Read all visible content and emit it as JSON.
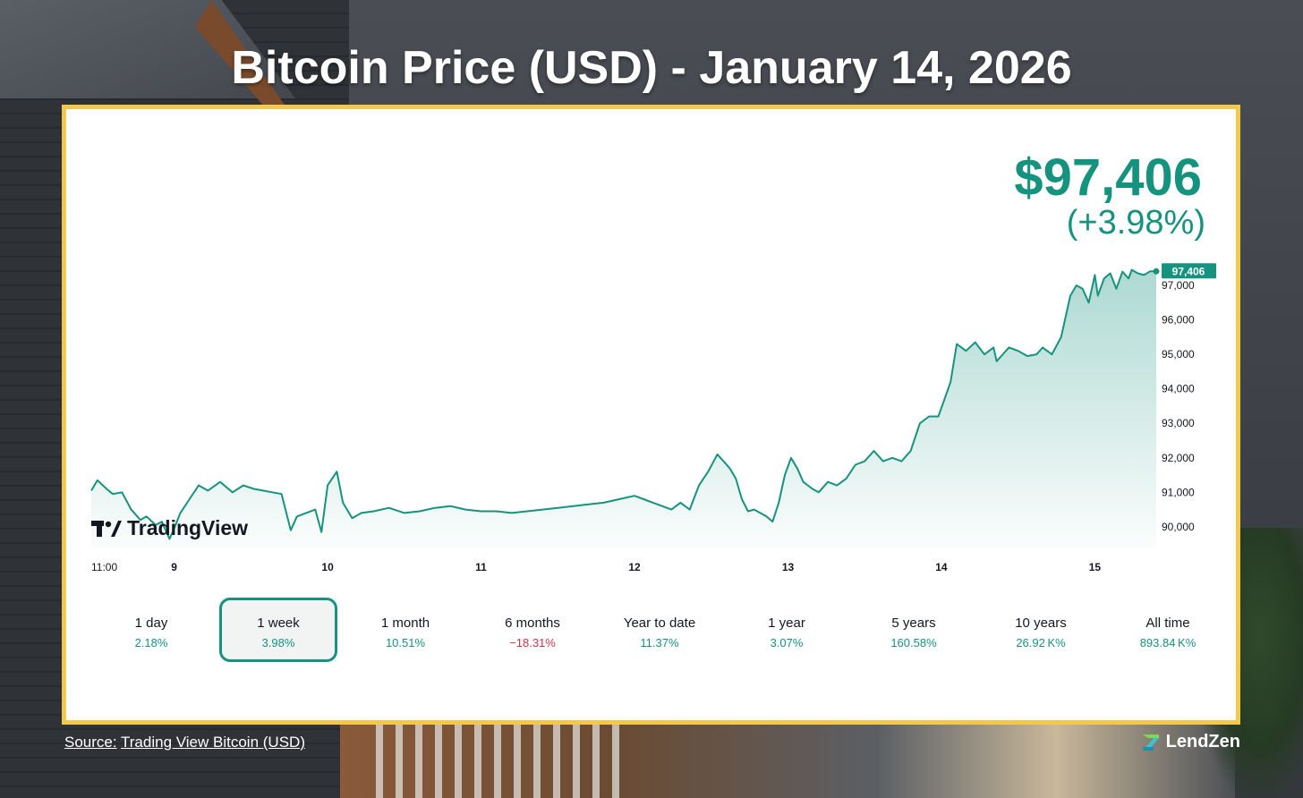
{
  "title": "Bitcoin Price (USD) - January 14, 2026",
  "colors": {
    "accent": "#16937f",
    "negative": "#d2334b",
    "frame": "#f2c94c"
  },
  "price": {
    "value": "$97,406",
    "change": "(+3.98%)",
    "last_label": "97,406"
  },
  "logo": {
    "icon": "tradingview-logo-icon",
    "text": "TradingView"
  },
  "ranges": [
    {
      "label": "1 day",
      "pct": "2.18%",
      "negative": false,
      "selected": false
    },
    {
      "label": "1 week",
      "pct": "3.98%",
      "negative": false,
      "selected": true
    },
    {
      "label": "1 month",
      "pct": "10.51%",
      "negative": false,
      "selected": false
    },
    {
      "label": "6 months",
      "pct": "−18.31%",
      "negative": true,
      "selected": false
    },
    {
      "label": "Year to date",
      "pct": "11.37%",
      "negative": false,
      "selected": false
    },
    {
      "label": "1 year",
      "pct": "3.07%",
      "negative": false,
      "selected": false
    },
    {
      "label": "5 years",
      "pct": "160.58%",
      "negative": false,
      "selected": false
    },
    {
      "label": "10 years",
      "pct": "26.92 K%",
      "negative": false,
      "selected": false
    },
    {
      "label": "All time",
      "pct": "893.84 K%",
      "negative": false,
      "selected": false
    }
  ],
  "footer": {
    "source_prefix": "Source:",
    "source_link": "Trading View Bitcoin (USD)",
    "brand": "LendZen"
  },
  "chart_data": {
    "type": "area",
    "title": "",
    "xlabel": "",
    "ylabel": "",
    "x_tick_labels": [
      "11:00",
      "9",
      "10",
      "11",
      "12",
      "13",
      "14",
      "15"
    ],
    "x_ticks": [
      8.46,
      9,
      10,
      11,
      12,
      13,
      14,
      15
    ],
    "xlim": [
      8.46,
      15.4
    ],
    "y_ticks": [
      90000,
      91000,
      92000,
      93000,
      94000,
      95000,
      96000,
      97000
    ],
    "y_tick_labels": [
      "90,000",
      "91,000",
      "92,000",
      "93,000",
      "94,000",
      "95,000",
      "96,000",
      "97,000"
    ],
    "ylim": [
      89400,
      97700
    ],
    "grid": false,
    "legend": "none",
    "series": [
      {
        "color": "#16937f",
        "x": [
          8.46,
          8.5,
          8.56,
          8.6,
          8.66,
          8.72,
          8.78,
          8.82,
          8.88,
          8.92,
          8.97,
          9.0,
          9.04,
          9.1,
          9.16,
          9.22,
          9.3,
          9.38,
          9.45,
          9.52,
          9.58,
          9.64,
          9.7,
          9.76,
          9.8,
          9.86,
          9.92,
          9.96,
          10.0,
          10.06,
          10.1,
          10.16,
          10.22,
          10.3,
          10.4,
          10.5,
          10.6,
          10.7,
          10.8,
          10.9,
          11.0,
          11.1,
          11.2,
          11.3,
          11.4,
          11.5,
          11.6,
          11.7,
          11.8,
          11.9,
          12.0,
          12.06,
          12.12,
          12.18,
          12.24,
          12.3,
          12.36,
          12.42,
          12.48,
          12.54,
          12.58,
          12.62,
          12.66,
          12.7,
          12.74,
          12.78,
          12.82,
          12.86,
          12.9,
          12.94,
          12.98,
          13.02,
          13.06,
          13.1,
          13.16,
          13.2,
          13.26,
          13.32,
          13.38,
          13.44,
          13.5,
          13.56,
          13.62,
          13.68,
          13.74,
          13.8,
          13.86,
          13.92,
          13.98,
          14.02,
          14.06,
          14.1,
          14.16,
          14.22,
          14.28,
          14.34,
          14.36,
          14.4,
          14.44,
          14.5,
          14.56,
          14.62,
          14.66,
          14.72,
          14.78,
          14.84,
          14.88,
          14.92,
          14.96,
          15.0,
          15.02,
          15.06,
          15.1,
          15.14,
          15.18,
          15.22,
          15.24,
          15.28,
          15.32,
          15.36,
          15.4
        ],
        "y": [
          91050,
          91350,
          91100,
          90950,
          91000,
          90500,
          90200,
          90300,
          90050,
          90150,
          89650,
          89950,
          90400,
          90800,
          91200,
          91050,
          91300,
          91000,
          91200,
          91100,
          91050,
          91000,
          90950,
          89900,
          90300,
          90400,
          90500,
          89850,
          91200,
          91600,
          90700,
          90250,
          90400,
          90450,
          90550,
          90400,
          90450,
          90550,
          90600,
          90500,
          90450,
          90450,
          90400,
          90450,
          90500,
          90550,
          90600,
          90650,
          90700,
          90800,
          90900,
          90800,
          90700,
          90600,
          90500,
          90700,
          90500,
          91200,
          91600,
          92100,
          91900,
          91700,
          91400,
          90800,
          90450,
          90500,
          90400,
          90300,
          90150,
          90700,
          91500,
          92000,
          91700,
          91300,
          91100,
          91000,
          91300,
          91200,
          91400,
          91800,
          91900,
          92200,
          91900,
          92000,
          91900,
          92200,
          93000,
          93200,
          93200,
          93700,
          94200,
          95300,
          95100,
          95350,
          95000,
          95200,
          94800,
          95000,
          95200,
          95100,
          94950,
          95000,
          95200,
          95000,
          95500,
          96700,
          97000,
          96900,
          96500,
          97300,
          96700,
          97200,
          97350,
          96900,
          97400,
          97200,
          97450,
          97350,
          97300,
          97406,
          97406
        ]
      }
    ]
  }
}
